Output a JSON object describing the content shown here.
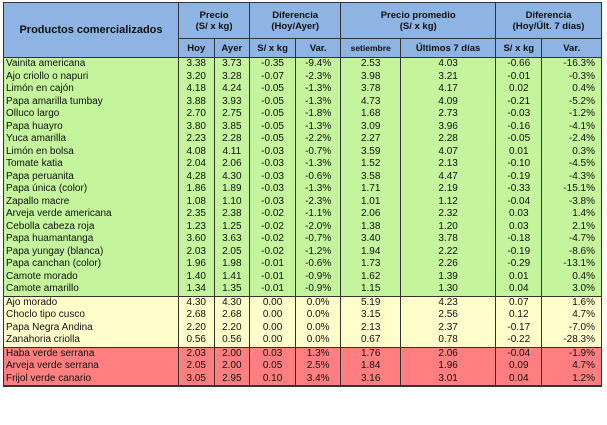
{
  "headers": {
    "product": "Productos comercializados",
    "precio": "Precio\n(S/ x kg)",
    "dif1": "Diferencia\n(Hoy/Ayer)",
    "promedio": "Precio promedio\n(S/ x kg)",
    "dif2": "Diferencia\n(Hoy/Últ. 7 días)",
    "hoy": "Hoy",
    "ayer": "Ayer",
    "skg1": "S/ x kg",
    "var1": "Var.",
    "setiembre": "setiembre",
    "ult7": "Últimos 7 días",
    "skg2": "S/ x kg",
    "var2": "Var."
  },
  "colors": {
    "header": "#8db4e2",
    "green": "#c4f49c",
    "yellow": "#ffffcc",
    "red": "#ff7f80"
  },
  "rows": [
    {
      "g": "green",
      "c": [
        "Vainita americana",
        "3.38",
        "3.73",
        "-0.35",
        "-9.4%",
        "2.53",
        "4.03",
        "-0.66",
        "-16.3%"
      ]
    },
    {
      "g": "green",
      "c": [
        "Ajo criollo o napuri",
        "3.20",
        "3.28",
        "-0.07",
        "-2.3%",
        "3.98",
        "3.21",
        "-0.01",
        "-0.3%"
      ]
    },
    {
      "g": "green",
      "c": [
        "Limón en cajón",
        "4.18",
        "4.24",
        "-0.05",
        "-1.3%",
        "3.78",
        "4.17",
        "0.02",
        "0.4%"
      ]
    },
    {
      "g": "green",
      "c": [
        "Papa amarilla tumbay",
        "3.88",
        "3.93",
        "-0.05",
        "-1.3%",
        "4.73",
        "4.09",
        "-0.21",
        "-5.2%"
      ]
    },
    {
      "g": "green",
      "c": [
        "Olluco largo",
        "2.70",
        "2.75",
        "-0.05",
        "-1.8%",
        "1.68",
        "2.73",
        "-0.03",
        "-1.2%"
      ]
    },
    {
      "g": "green",
      "c": [
        "Papa huayro",
        "3.80",
        "3.85",
        "-0.05",
        "-1.3%",
        "3.09",
        "3.96",
        "-0.16",
        "-4.1%"
      ]
    },
    {
      "g": "green",
      "c": [
        "Yuca amarilla",
        "2.23",
        "2.28",
        "-0.05",
        "-2.2%",
        "2.27",
        "2.28",
        "-0.05",
        "-2.4%"
      ]
    },
    {
      "g": "green",
      "c": [
        "Limón en bolsa",
        "4.08",
        "4.11",
        "-0.03",
        "-0.7%",
        "3.59",
        "4.07",
        "0.01",
        "0.3%"
      ]
    },
    {
      "g": "green",
      "c": [
        "Tomate katia",
        "2.04",
        "2.06",
        "-0.03",
        "-1.3%",
        "1.52",
        "2.13",
        "-0.10",
        "-4.5%"
      ]
    },
    {
      "g": "green",
      "c": [
        "Papa peruanita",
        "4.28",
        "4.30",
        "-0.03",
        "-0.6%",
        "3.58",
        "4.47",
        "-0.19",
        "-4.3%"
      ]
    },
    {
      "g": "green",
      "c": [
        "Papa única (color)",
        "1.86",
        "1.89",
        "-0.03",
        "-1.3%",
        "1.71",
        "2.19",
        "-0.33",
        "-15.1%"
      ]
    },
    {
      "g": "green",
      "c": [
        "Zapallo macre",
        "1.08",
        "1.10",
        "-0.03",
        "-2.3%",
        "1.01",
        "1.12",
        "-0.04",
        "-3.8%"
      ]
    },
    {
      "g": "green",
      "c": [
        "Arveja verde americana",
        "2.35",
        "2.38",
        "-0.02",
        "-1.1%",
        "2.06",
        "2.32",
        "0.03",
        "1.4%"
      ]
    },
    {
      "g": "green",
      "c": [
        "Cebolla cabeza roja",
        "1.23",
        "1.25",
        "-0.02",
        "-2.0%",
        "1.38",
        "1.20",
        "0.03",
        "2.1%"
      ]
    },
    {
      "g": "green",
      "c": [
        "Papa huamantanga",
        "3.60",
        "3.63",
        "-0.02",
        "-0.7%",
        "3.40",
        "3.78",
        "-0.18",
        "-4.7%"
      ]
    },
    {
      "g": "green",
      "c": [
        "Papa yungay (blanca)",
        "2.03",
        "2.05",
        "-0.02",
        "-1.2%",
        "1.94",
        "2.22",
        "-0.19",
        "-8.6%"
      ]
    },
    {
      "g": "green",
      "c": [
        "Papa canchan (color)",
        "1.96",
        "1.98",
        "-0.01",
        "-0.6%",
        "1.73",
        "2.26",
        "-0.29",
        "-13.1%"
      ]
    },
    {
      "g": "green",
      "c": [
        "Camote morado",
        "1.40",
        "1.41",
        "-0.01",
        "-0.9%",
        "1.62",
        "1.39",
        "0.01",
        "0.4%"
      ]
    },
    {
      "g": "green",
      "c": [
        "Camote amarillo",
        "1.34",
        "1.35",
        "-0.01",
        "-0.9%",
        "1.15",
        "1.30",
        "0.04",
        "3.0%"
      ]
    },
    {
      "g": "yellow",
      "c": [
        "Ajo morado",
        "4.30",
        "4.30",
        "0.00",
        "0.0%",
        "5.19",
        "4.23",
        "0.07",
        "1.6%"
      ]
    },
    {
      "g": "yellow",
      "c": [
        "Choclo tipo cusco",
        "2.68",
        "2.68",
        "0.00",
        "0.0%",
        "3.15",
        "2.56",
        "0.12",
        "4.7%"
      ]
    },
    {
      "g": "yellow",
      "c": [
        "Papa Negra Andina",
        "2.20",
        "2.20",
        "0.00",
        "0.0%",
        "2.13",
        "2.37",
        "-0.17",
        "-7.0%"
      ]
    },
    {
      "g": "yellow",
      "c": [
        "Zanahoria criolla",
        "0.56",
        "0.56",
        "0.00",
        "0.0%",
        "0.67",
        "0.78",
        "-0.22",
        "-28.3%"
      ]
    },
    {
      "g": "red",
      "c": [
        "Haba verde serrana",
        "2.03",
        "2.00",
        "0.03",
        "1.3%",
        "1.76",
        "2.06",
        "-0.04",
        "-1.9%"
      ]
    },
    {
      "g": "red",
      "c": [
        "Arveja verde serrana",
        "2.05",
        "2.00",
        "0.05",
        "2.5%",
        "1.84",
        "1.96",
        "0.09",
        "4.7%"
      ]
    },
    {
      "g": "red",
      "c": [
        "Frijol verde canario",
        "3.05",
        "2.95",
        "0.10",
        "3.4%",
        "3.16",
        "3.01",
        "0.04",
        "1.2%"
      ]
    }
  ]
}
